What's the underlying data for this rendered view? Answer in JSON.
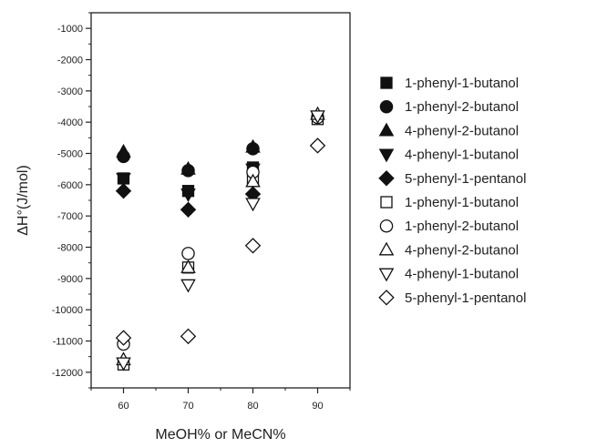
{
  "chart_data": {
    "type": "scatter",
    "title": "",
    "xlabel": "MeOH% or MeCN%",
    "ylabel": "ΔH°(J/mol)",
    "xlim": [
      55,
      95
    ],
    "ylim": [
      -12500,
      -500
    ],
    "x_ticks": [
      60,
      70,
      80,
      90
    ],
    "y_ticks": [
      -1000,
      -2000,
      -3000,
      -4000,
      -5000,
      -6000,
      -7000,
      -8000,
      -9000,
      -10000,
      -11000,
      -12000
    ],
    "grid": false,
    "legend_position": "right",
    "series": [
      {
        "name": "1-phenyl-1-butanol",
        "marker": "square",
        "filled": true,
        "points": [
          [
            60,
            -5800
          ],
          [
            70,
            -6200
          ],
          [
            80,
            -5450
          ]
        ]
      },
      {
        "name": "1-phenyl-2-butanol",
        "marker": "circle",
        "filled": true,
        "points": [
          [
            60,
            -5100
          ],
          [
            70,
            -5550
          ],
          [
            80,
            -4850
          ]
        ]
      },
      {
        "name": "4-phenyl-2-butanol",
        "marker": "triangle-up",
        "filled": true,
        "points": [
          [
            60,
            -4950
          ],
          [
            70,
            -5500
          ],
          [
            80,
            -4800
          ]
        ]
      },
      {
        "name": "4-phenyl-1-butanol",
        "marker": "triangle-down",
        "filled": true,
        "points": [
          [
            60,
            -5800
          ],
          [
            70,
            -6300
          ],
          [
            80,
            -5500
          ]
        ]
      },
      {
        "name": "5-phenyl-1-pentanol",
        "marker": "diamond",
        "filled": true,
        "points": [
          [
            60,
            -6200
          ],
          [
            70,
            -6800
          ],
          [
            80,
            -6300
          ]
        ]
      },
      {
        "name": "1-phenyl-1-butanol",
        "marker": "square",
        "filled": false,
        "points": [
          [
            60,
            -11750
          ],
          [
            70,
            -8650
          ],
          [
            80,
            -5850
          ],
          [
            90,
            -3900
          ]
        ]
      },
      {
        "name": "1-phenyl-2-butanol",
        "marker": "circle",
        "filled": false,
        "points": [
          [
            60,
            -11100
          ],
          [
            70,
            -8200
          ],
          [
            80,
            -5600
          ],
          [
            90,
            -3850
          ]
        ]
      },
      {
        "name": "4-phenyl-2-butanol",
        "marker": "triangle-up",
        "filled": false,
        "points": [
          [
            60,
            -11600
          ],
          [
            70,
            -8650
          ],
          [
            80,
            -5900
          ],
          [
            90,
            -3750
          ]
        ]
      },
      {
        "name": "4-phenyl-1-butanol",
        "marker": "triangle-down",
        "filled": false,
        "points": [
          [
            60,
            -11700
          ],
          [
            70,
            -9200
          ],
          [
            80,
            -6600
          ],
          [
            90,
            -3800
          ]
        ]
      },
      {
        "name": "5-phenyl-1-pentanol",
        "marker": "diamond",
        "filled": false,
        "points": [
          [
            60,
            -10900
          ],
          [
            70,
            -10850
          ],
          [
            80,
            -7950
          ],
          [
            90,
            -4750
          ]
        ]
      }
    ]
  }
}
